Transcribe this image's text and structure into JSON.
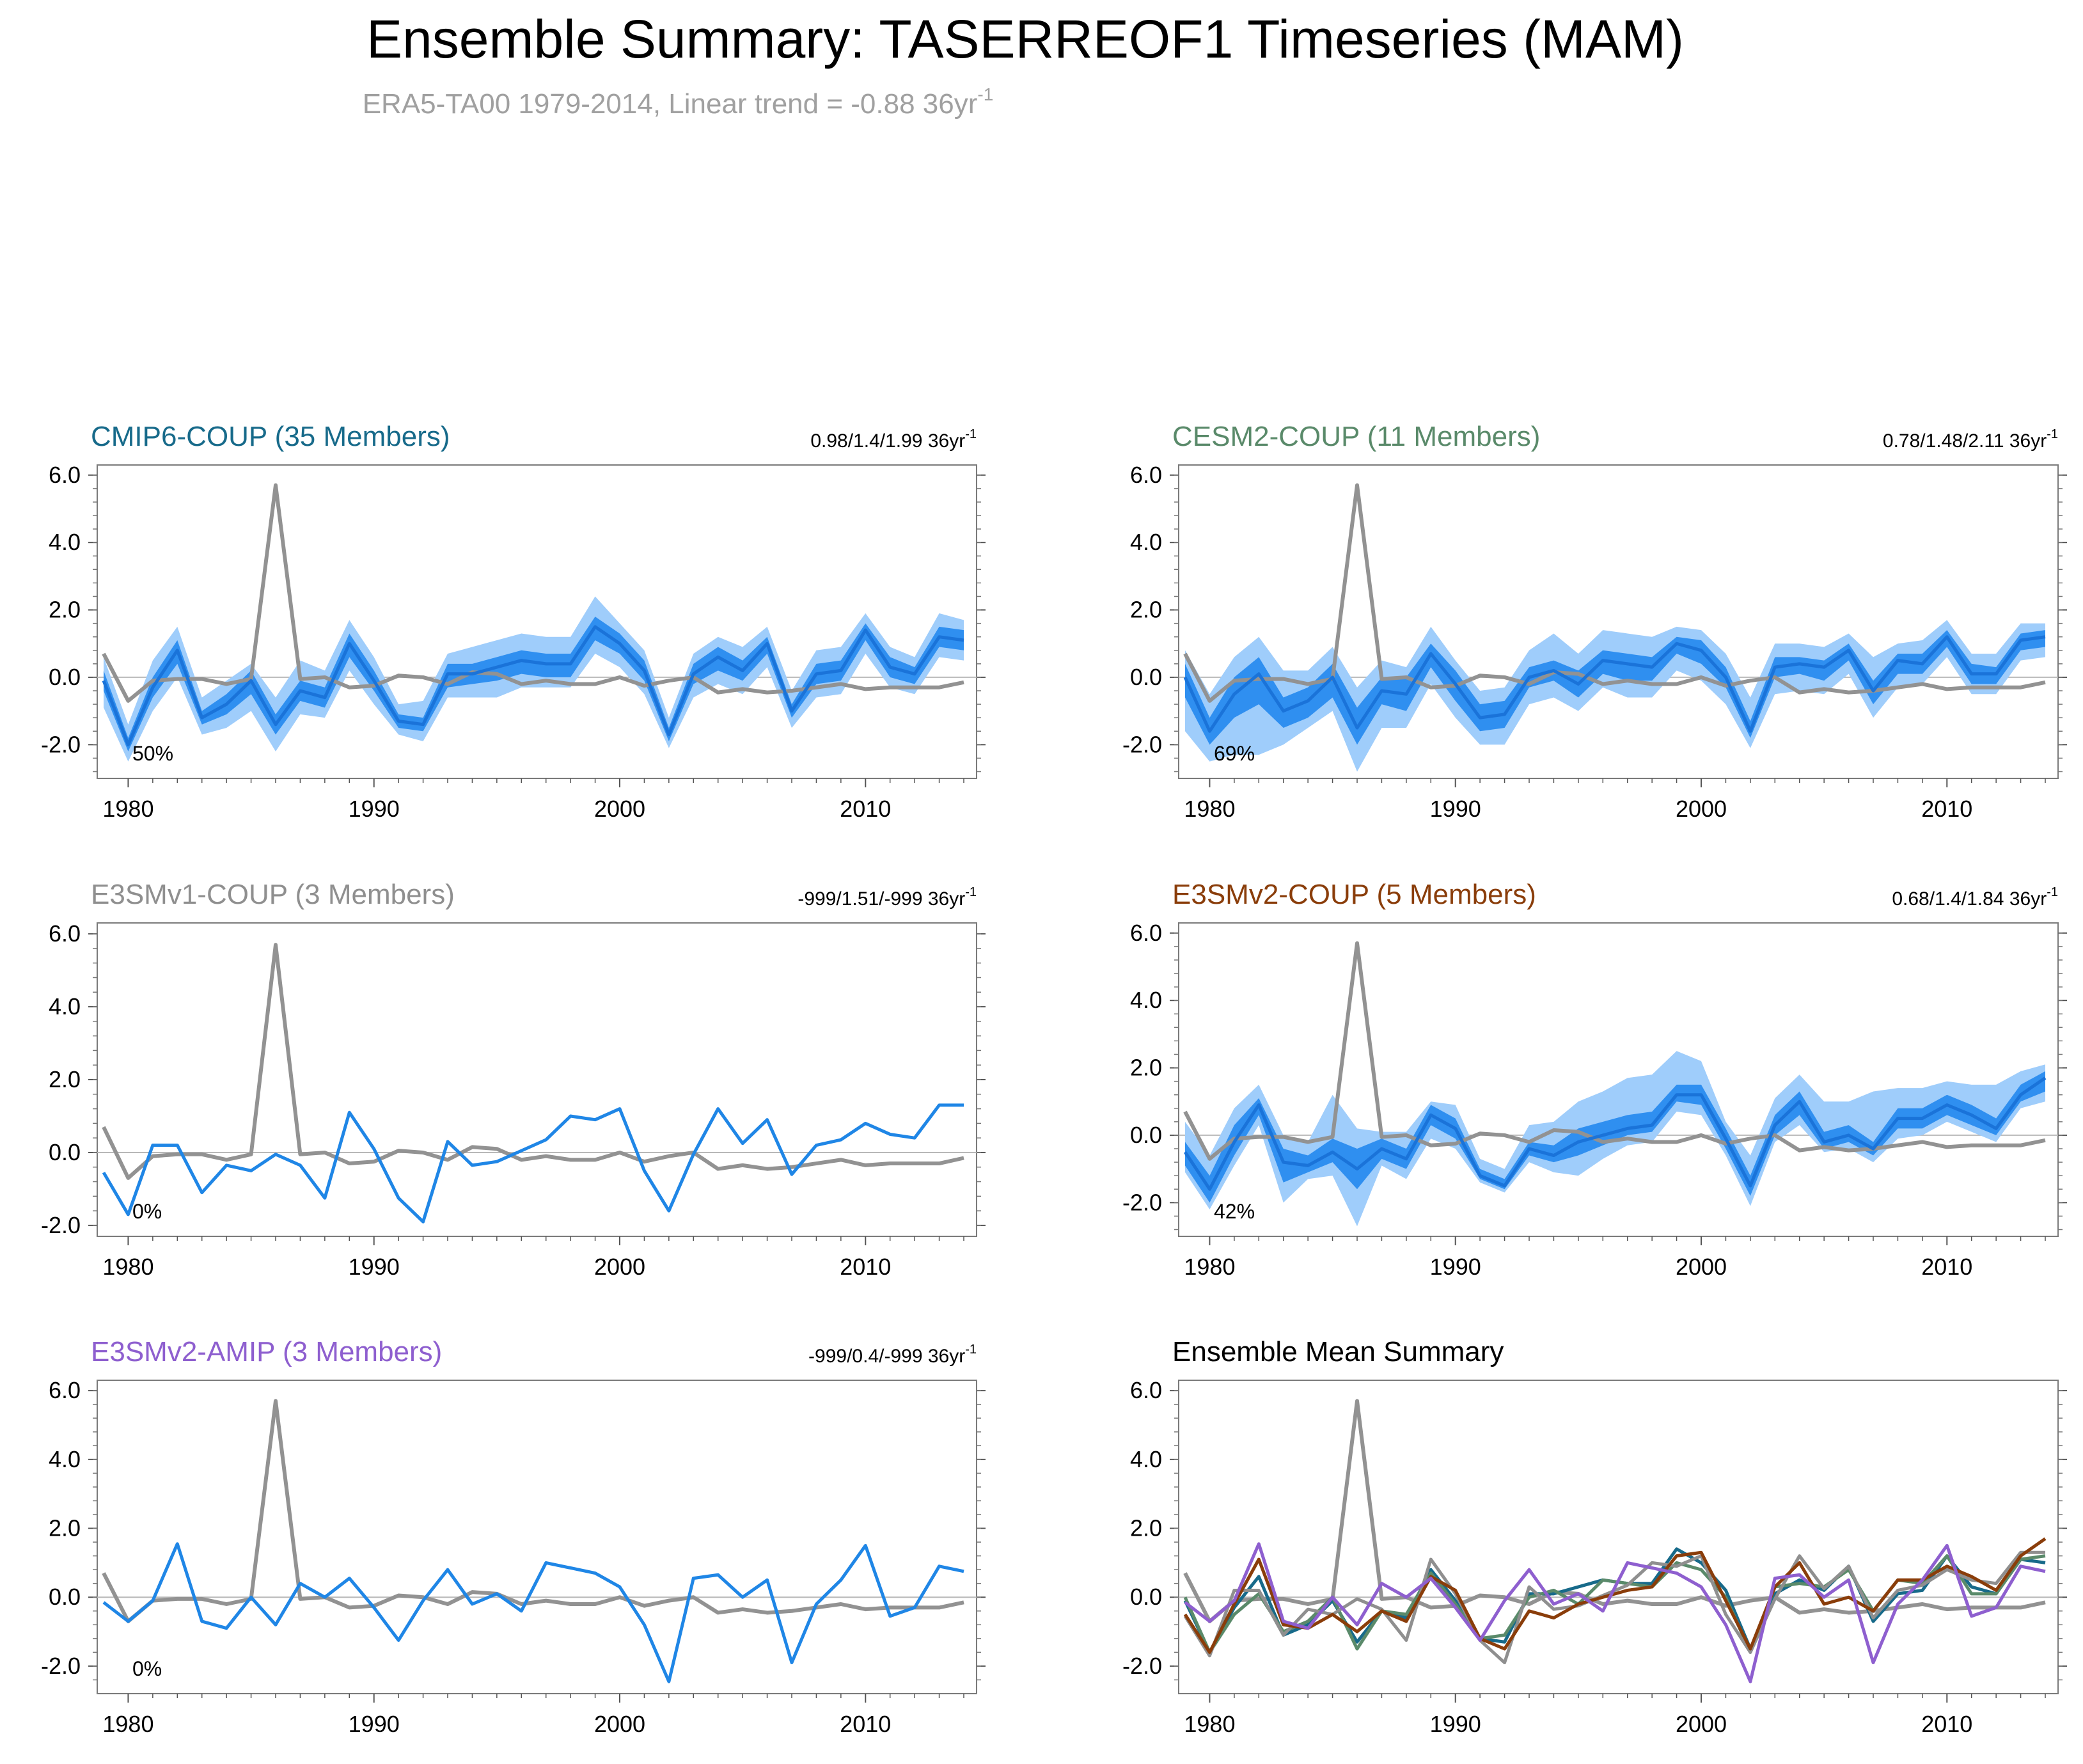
{
  "page": {
    "title": "Ensemble Summary: TASERREOF1 Timeseries (MAM)",
    "subtitle": "ERA5-TA00 1979-2014, Linear trend = -0.88 36yr",
    "subtitle_sup": "-1"
  },
  "colors": {
    "obs": "#929292",
    "model_line": "#1f86e6",
    "band_outer": "#9fcdfb",
    "band_inner": "#2f8ff0",
    "cmip6": "#176a8a",
    "cesm2": "#5a8a6a",
    "e3smv1": "#8f8f8f",
    "e3smv2_coup": "#8a3d0a",
    "e3smv2_amip": "#8e5fcf"
  },
  "chart_data": [
    {
      "type": "line",
      "panel": "cmip6",
      "title": "CMIP6-COUP (35 Members)",
      "title_color": "#176a8a",
      "trend_text": "0.98/1.4/1.99 36yr",
      "percent_label": "50%",
      "xlim": [
        1979,
        2014
      ],
      "ylim": [
        -3,
        6.3
      ],
      "xticks": [
        1980,
        1990,
        2000,
        2010
      ],
      "yticks": [
        -2,
        0,
        2,
        4,
        6
      ],
      "ytick_labels": [
        "-2.0",
        "0.0",
        "2.0",
        "4.0",
        "6.0"
      ],
      "obs": [
        0.7,
        -0.7,
        -0.1,
        -0.05,
        -0.05,
        -0.2,
        -0.05,
        5.7,
        -0.05,
        0.0,
        -0.3,
        -0.25,
        0.05,
        0.0,
        -0.2,
        0.15,
        0.1,
        -0.2,
        -0.1,
        -0.2,
        -0.2,
        0.0,
        -0.25,
        -0.1,
        0.0,
        -0.45,
        -0.35,
        -0.45,
        -0.4,
        -0.3,
        -0.2,
        -0.35,
        -0.3,
        -0.3,
        -0.3,
        -0.15
      ],
      "mean": [
        -0.1,
        -2.0,
        -0.3,
        0.8,
        -1.2,
        -0.8,
        -0.1,
        -1.4,
        -0.4,
        -0.6,
        1.0,
        -0.1,
        -1.3,
        -1.4,
        0.1,
        0.1,
        0.3,
        0.5,
        0.4,
        0.4,
        1.5,
        1.0,
        0.2,
        -1.7,
        0.1,
        0.6,
        0.2,
        1.0,
        -1.0,
        0.1,
        0.2,
        1.4,
        0.3,
        0.1,
        1.2,
        1.1
      ],
      "band_lo": [
        -0.9,
        -2.5,
        -1.0,
        0.0,
        -1.7,
        -1.5,
        -1.0,
        -2.2,
        -1.1,
        -1.2,
        0.2,
        -0.8,
        -1.7,
        -1.9,
        -0.6,
        -0.6,
        -0.6,
        -0.3,
        -0.3,
        -0.3,
        0.7,
        0.3,
        -0.5,
        -2.1,
        -0.6,
        -0.2,
        -0.5,
        0.3,
        -1.5,
        -0.6,
        -0.5,
        0.7,
        -0.3,
        -0.5,
        0.6,
        0.5
      ],
      "band_hi": [
        0.6,
        -1.4,
        0.5,
        1.5,
        -0.6,
        -0.1,
        0.4,
        -0.6,
        0.5,
        0.2,
        1.7,
        0.6,
        -0.8,
        -0.7,
        0.7,
        0.9,
        1.1,
        1.3,
        1.2,
        1.2,
        2.4,
        1.6,
        0.8,
        -1.2,
        0.7,
        1.2,
        0.9,
        1.5,
        -0.4,
        0.8,
        0.9,
        1.9,
        0.9,
        0.6,
        1.9,
        1.7
      ],
      "inner_lo": [
        -0.4,
        -2.2,
        -0.6,
        0.4,
        -1.4,
        -1.1,
        -0.5,
        -1.7,
        -0.7,
        -0.9,
        0.6,
        -0.4,
        -1.5,
        -1.6,
        -0.3,
        -0.2,
        -0.1,
        0.1,
        0.0,
        0.0,
        1.1,
        0.7,
        -0.1,
        -1.9,
        -0.2,
        0.2,
        -0.1,
        0.7,
        -1.2,
        -0.2,
        -0.1,
        1.1,
        0.0,
        -0.2,
        0.9,
        0.8
      ],
      "inner_hi": [
        0.2,
        -1.8,
        0.0,
        1.1,
        -1.0,
        -0.5,
        0.2,
        -1.1,
        -0.1,
        -0.3,
        1.3,
        0.2,
        -1.1,
        -1.2,
        0.4,
        0.4,
        0.6,
        0.8,
        0.7,
        0.7,
        1.8,
        1.3,
        0.5,
        -1.5,
        0.4,
        0.9,
        0.5,
        1.2,
        -0.8,
        0.4,
        0.5,
        1.6,
        0.6,
        0.3,
        1.5,
        1.4
      ]
    },
    {
      "type": "line",
      "panel": "cesm2",
      "title": "CESM2-COUP (11 Members)",
      "title_color": "#5a8a6a",
      "trend_text": "0.78/1.48/2.11 36yr",
      "percent_label": "69%",
      "xlim": [
        1979,
        2014
      ],
      "ylim": [
        -3,
        6.3
      ],
      "xticks": [
        1980,
        1990,
        2000,
        2010
      ],
      "yticks": [
        -2,
        0,
        2,
        4,
        6
      ],
      "ytick_labels": [
        "-2.0",
        "0.0",
        "2.0",
        "4.0",
        "6.0"
      ],
      "obs": [
        0.7,
        -0.7,
        -0.1,
        -0.05,
        -0.05,
        -0.2,
        -0.05,
        5.7,
        -0.05,
        0.0,
        -0.3,
        -0.25,
        0.05,
        0.0,
        -0.2,
        0.15,
        0.1,
        -0.2,
        -0.1,
        -0.2,
        -0.2,
        0.0,
        -0.25,
        -0.1,
        0.0,
        -0.45,
        -0.35,
        -0.45,
        -0.4,
        -0.3,
        -0.2,
        -0.35,
        -0.3,
        -0.3,
        -0.3,
        -0.15
      ],
      "mean": [
        0.0,
        -1.6,
        -0.5,
        0.1,
        -1.0,
        -0.7,
        0.0,
        -1.5,
        -0.4,
        -0.5,
        0.7,
        -0.2,
        -1.2,
        -1.1,
        0.0,
        0.2,
        -0.2,
        0.5,
        0.4,
        0.3,
        1.0,
        0.8,
        0.0,
        -1.6,
        0.3,
        0.4,
        0.3,
        0.8,
        -0.4,
        0.5,
        0.4,
        1.2,
        0.1,
        0.1,
        1.1,
        1.2
      ],
      "band_lo": [
        -1.6,
        -2.5,
        -2.3,
        -2.3,
        -2.0,
        -1.5,
        -1.0,
        -2.8,
        -1.5,
        -1.5,
        -0.2,
        -1.2,
        -2.0,
        -2.0,
        -0.8,
        -0.6,
        -1.0,
        -0.3,
        -0.6,
        -0.6,
        0.2,
        -0.1,
        -0.8,
        -2.1,
        -0.5,
        -0.4,
        -0.5,
        0.1,
        -1.2,
        -0.3,
        -0.2,
        0.6,
        -0.5,
        -0.5,
        0.5,
        0.6
      ],
      "band_hi": [
        0.8,
        -0.5,
        0.6,
        1.2,
        0.2,
        0.2,
        0.9,
        -0.3,
        0.5,
        0.3,
        1.5,
        0.5,
        -0.4,
        -0.3,
        0.8,
        1.3,
        0.7,
        1.4,
        1.3,
        1.2,
        1.5,
        1.4,
        0.7,
        -0.6,
        1.0,
        1.0,
        0.9,
        1.3,
        0.6,
        1.0,
        1.1,
        1.7,
        0.7,
        0.7,
        1.6,
        1.6
      ],
      "inner_lo": [
        -0.6,
        -2.0,
        -1.2,
        -0.8,
        -1.5,
        -1.2,
        -0.6,
        -2.0,
        -0.8,
        -1.0,
        0.3,
        -0.7,
        -1.6,
        -1.5,
        -0.3,
        -0.1,
        -0.6,
        0.1,
        -0.1,
        -0.1,
        0.7,
        0.4,
        -0.3,
        -1.8,
        0.0,
        0.1,
        -0.1,
        0.5,
        -0.8,
        0.1,
        0.1,
        0.9,
        -0.2,
        -0.2,
        0.8,
        0.9
      ],
      "inner_hi": [
        0.4,
        -1.2,
        0.0,
        0.6,
        -0.6,
        -0.3,
        0.4,
        -0.9,
        0.0,
        0.0,
        1.0,
        0.2,
        -0.8,
        -0.7,
        0.3,
        0.5,
        0.2,
        0.8,
        0.7,
        0.6,
        1.2,
        1.1,
        0.3,
        -1.3,
        0.6,
        0.6,
        0.5,
        1.0,
        -0.1,
        0.7,
        0.7,
        1.4,
        0.4,
        0.3,
        1.3,
        1.4
      ]
    },
    {
      "type": "line",
      "panel": "e3smv1",
      "title": "E3SMv1-COUP (3 Members)",
      "title_color": "#8f8f8f",
      "trend_text": "-999/1.51/-999 36yr",
      "percent_label": "0%",
      "xlim": [
        1979,
        2014
      ],
      "ylim": [
        -2.3,
        6.3
      ],
      "xticks": [
        1980,
        1990,
        2000,
        2010
      ],
      "yticks": [
        -2,
        0,
        2,
        4,
        6
      ],
      "ytick_labels": [
        "-2.0",
        "0.0",
        "2.0",
        "4.0",
        "6.0"
      ],
      "obs": [
        0.7,
        -0.7,
        -0.1,
        -0.05,
        -0.05,
        -0.2,
        -0.05,
        5.7,
        -0.05,
        0.0,
        -0.3,
        -0.25,
        0.05,
        0.0,
        -0.2,
        0.15,
        0.1,
        -0.2,
        -0.1,
        -0.2,
        -0.2,
        0.0,
        -0.25,
        -0.1,
        0.0,
        -0.45,
        -0.35,
        -0.45,
        -0.4,
        -0.3,
        -0.2,
        -0.35,
        -0.3,
        -0.3,
        -0.3,
        -0.15
      ],
      "mean": [
        -0.55,
        -1.7,
        0.2,
        0.2,
        -1.1,
        -0.35,
        -0.5,
        -0.05,
        -0.35,
        -1.25,
        1.1,
        0.1,
        -1.25,
        -1.9,
        0.3,
        -0.35,
        -0.25,
        0.05,
        0.35,
        1.0,
        0.9,
        1.2,
        -0.5,
        -1.6,
        -0.05,
        1.2,
        0.25,
        0.9,
        -0.6,
        0.2,
        0.35,
        0.8,
        0.5,
        0.4,
        1.3,
        1.3
      ]
    },
    {
      "type": "line",
      "panel": "e3smv2_coup",
      "title": "E3SMv2-COUP (5 Members)",
      "title_color": "#8a3d0a",
      "trend_text": "0.68/1.4/1.84 36yr",
      "percent_label": "42%",
      "xlim": [
        1979,
        2014
      ],
      "ylim": [
        -3,
        6.3
      ],
      "xticks": [
        1980,
        1990,
        2000,
        2010
      ],
      "yticks": [
        -2,
        0,
        2,
        4,
        6
      ],
      "ytick_labels": [
        "-2.0",
        "0.0",
        "2.0",
        "4.0",
        "6.0"
      ],
      "obs": [
        0.7,
        -0.7,
        -0.1,
        -0.05,
        -0.05,
        -0.2,
        -0.05,
        5.7,
        -0.05,
        0.0,
        -0.3,
        -0.25,
        0.05,
        0.0,
        -0.2,
        0.15,
        0.1,
        -0.2,
        -0.1,
        -0.2,
        -0.2,
        0.0,
        -0.25,
        -0.1,
        0.0,
        -0.45,
        -0.35,
        -0.45,
        -0.4,
        -0.3,
        -0.2,
        -0.35,
        -0.3,
        -0.3,
        -0.3,
        -0.15
      ],
      "mean": [
        -0.5,
        -1.6,
        -0.2,
        0.9,
        -0.8,
        -0.9,
        -0.5,
        -1.0,
        -0.4,
        -0.7,
        0.6,
        0.2,
        -1.2,
        -1.5,
        -0.4,
        -0.6,
        -0.2,
        0.0,
        0.2,
        0.3,
        1.2,
        1.2,
        -0.1,
        -1.5,
        0.3,
        1.0,
        -0.2,
        0.0,
        -0.4,
        0.5,
        0.5,
        0.9,
        0.6,
        0.2,
        1.2,
        1.7
      ],
      "band_lo": [
        -1.1,
        -2.2,
        -0.9,
        0.3,
        -2.0,
        -1.3,
        -1.2,
        -2.7,
        -0.9,
        -1.3,
        -0.1,
        -0.4,
        -1.4,
        -1.7,
        -0.8,
        -1.1,
        -1.2,
        -0.7,
        -0.3,
        -0.2,
        0.7,
        0.6,
        -0.6,
        -2.1,
        -0.2,
        0.3,
        -0.5,
        -0.4,
        -0.8,
        -0.1,
        0.0,
        0.4,
        0.1,
        -0.2,
        0.8,
        1.0
      ],
      "band_hi": [
        0.4,
        -0.6,
        0.8,
        1.5,
        0.0,
        -0.2,
        1.2,
        0.2,
        0.1,
        0.1,
        1.0,
        0.9,
        -0.7,
        -1.0,
        0.3,
        0.4,
        1.0,
        1.3,
        1.7,
        1.8,
        2.5,
        2.2,
        0.4,
        -0.6,
        1.1,
        1.8,
        1.0,
        1.0,
        1.3,
        1.4,
        1.4,
        1.6,
        1.5,
        1.5,
        1.9,
        2.1
      ],
      "inner_lo": [
        -0.9,
        -2.0,
        -0.6,
        0.6,
        -1.4,
        -1.1,
        -0.8,
        -1.6,
        -0.7,
        -1.0,
        0.3,
        -0.1,
        -1.3,
        -1.6,
        -0.6,
        -0.8,
        -0.6,
        -0.3,
        0.0,
        0.1,
        1.0,
        0.9,
        -0.4,
        -1.8,
        0.0,
        0.6,
        -0.4,
        -0.2,
        -0.6,
        0.2,
        0.2,
        0.6,
        0.3,
        0.0,
        1.0,
        1.3
      ],
      "inner_hi": [
        -0.2,
        -1.2,
        0.3,
        1.1,
        -0.4,
        -0.6,
        -0.1,
        -0.4,
        -0.1,
        -0.4,
        0.9,
        0.5,
        -1.0,
        -1.3,
        -0.2,
        -0.3,
        0.2,
        0.4,
        0.6,
        0.7,
        1.5,
        1.5,
        0.2,
        -1.2,
        0.6,
        1.3,
        0.1,
        0.3,
        -0.2,
        0.8,
        0.8,
        1.2,
        0.9,
        0.5,
        1.5,
        1.9
      ]
    },
    {
      "type": "line",
      "panel": "e3smv2_amip",
      "title": "E3SMv2-AMIP (3 Members)",
      "title_color": "#8e5fcf",
      "trend_text": "-999/0.4/-999 36yr",
      "percent_label": "0%",
      "xlim": [
        1979,
        2014
      ],
      "ylim": [
        -2.8,
        6.3
      ],
      "xticks": [
        1980,
        1990,
        2000,
        2010
      ],
      "yticks": [
        -2,
        0,
        2,
        4,
        6
      ],
      "ytick_labels": [
        "-2.0",
        "0.0",
        "2.0",
        "4.0",
        "6.0"
      ],
      "obs": [
        0.7,
        -0.7,
        -0.1,
        -0.05,
        -0.05,
        -0.2,
        -0.05,
        5.7,
        -0.05,
        0.0,
        -0.3,
        -0.25,
        0.05,
        0.0,
        -0.2,
        0.15,
        0.1,
        -0.2,
        -0.1,
        -0.2,
        -0.2,
        0.0,
        -0.25,
        -0.1,
        0.0,
        -0.45,
        -0.35,
        -0.45,
        -0.4,
        -0.3,
        -0.2,
        -0.35,
        -0.3,
        -0.3,
        -0.3,
        -0.15
      ],
      "mean": [
        -0.15,
        -0.7,
        -0.1,
        1.55,
        -0.7,
        -0.9,
        0.0,
        -0.8,
        0.4,
        0.0,
        0.55,
        -0.3,
        -1.25,
        -0.1,
        0.8,
        -0.2,
        0.1,
        -0.4,
        1.0,
        0.85,
        0.7,
        0.3,
        -0.8,
        -2.45,
        0.55,
        0.65,
        0.0,
        0.5,
        -1.9,
        -0.2,
        0.5,
        1.5,
        -0.55,
        -0.3,
        0.9,
        0.75
      ]
    },
    {
      "type": "line",
      "panel": "summary",
      "title": "Ensemble Mean Summary",
      "title_color": "#000000",
      "trend_text": "",
      "percent_label": "",
      "xlim": [
        1979,
        2014
      ],
      "ylim": [
        -2.8,
        6.3
      ],
      "xticks": [
        1980,
        1990,
        2000,
        2010
      ],
      "yticks": [
        -2,
        0,
        2,
        4,
        6
      ],
      "ytick_labels": [
        "-2.0",
        "0.0",
        "2.0",
        "4.0",
        "6.0"
      ],
      "obs": [
        0.7,
        -0.7,
        -0.1,
        -0.05,
        -0.05,
        -0.2,
        -0.05,
        5.7,
        -0.05,
        0.0,
        -0.3,
        -0.25,
        0.05,
        0.0,
        -0.2,
        0.15,
        0.1,
        -0.2,
        -0.1,
        -0.2,
        -0.2,
        0.0,
        -0.25,
        -0.1,
        0.0,
        -0.45,
        -0.35,
        -0.45,
        -0.4,
        -0.3,
        -0.2,
        -0.35,
        -0.3,
        -0.3,
        -0.3,
        -0.15
      ],
      "series": [
        {
          "name": "CMIP6-COUP",
          "color": "#176a8a",
          "values": [
            -0.1,
            -1.6,
            -0.3,
            0.6,
            -1.1,
            -0.8,
            -0.1,
            -1.3,
            -0.4,
            -0.6,
            0.8,
            -0.1,
            -1.2,
            -1.3,
            0.1,
            0.1,
            0.3,
            0.5,
            0.4,
            0.4,
            1.4,
            1.0,
            0.2,
            -1.5,
            0.1,
            0.5,
            0.2,
            0.9,
            -0.7,
            0.1,
            0.2,
            1.2,
            0.3,
            0.1,
            1.1,
            1.0
          ]
        },
        {
          "name": "CESM2-COUP",
          "color": "#5a8a6a",
          "values": [
            0.0,
            -1.6,
            -0.5,
            0.1,
            -1.0,
            -0.7,
            0.0,
            -1.5,
            -0.4,
            -0.5,
            0.7,
            -0.2,
            -1.2,
            -1.1,
            0.0,
            0.2,
            -0.2,
            0.5,
            0.4,
            0.3,
            1.0,
            0.8,
            0.0,
            -1.6,
            0.3,
            0.4,
            0.3,
            0.8,
            -0.4,
            0.5,
            0.4,
            1.2,
            0.1,
            0.1,
            1.1,
            1.2
          ]
        },
        {
          "name": "E3SMv1-COUP",
          "color": "#8f8f8f",
          "values": [
            -0.55,
            -1.7,
            0.2,
            0.2,
            -1.1,
            -0.35,
            -0.5,
            -0.05,
            -0.35,
            -1.25,
            1.1,
            0.1,
            -1.25,
            -1.9,
            0.3,
            -0.35,
            -0.25,
            0.05,
            0.35,
            1.0,
            0.9,
            1.2,
            -0.5,
            -1.6,
            -0.05,
            1.2,
            0.25,
            0.9,
            -0.6,
            0.2,
            0.35,
            0.8,
            0.5,
            0.4,
            1.3,
            1.3
          ]
        },
        {
          "name": "E3SMv2-COUP",
          "color": "#8a3d0a",
          "values": [
            -0.5,
            -1.6,
            -0.2,
            1.1,
            -0.8,
            -0.9,
            -0.5,
            -1.0,
            -0.4,
            -0.7,
            0.6,
            0.2,
            -1.2,
            -1.5,
            -0.4,
            -0.6,
            -0.2,
            0.0,
            0.2,
            0.3,
            1.2,
            1.3,
            -0.1,
            -1.5,
            0.3,
            1.0,
            -0.2,
            0.0,
            -0.4,
            0.5,
            0.5,
            0.9,
            0.6,
            0.2,
            1.2,
            1.7
          ]
        },
        {
          "name": "E3SMv2-AMIP",
          "color": "#8e5fcf",
          "values": [
            -0.15,
            -0.7,
            -0.1,
            1.55,
            -0.7,
            -0.9,
            0.0,
            -0.8,
            0.4,
            0.0,
            0.55,
            -0.3,
            -1.25,
            -0.1,
            0.8,
            -0.2,
            0.1,
            -0.4,
            1.0,
            0.85,
            0.7,
            0.3,
            -0.8,
            -2.45,
            0.55,
            0.65,
            0.0,
            0.5,
            -1.9,
            -0.2,
            0.5,
            1.5,
            -0.55,
            -0.3,
            0.9,
            0.75
          ]
        }
      ]
    }
  ]
}
